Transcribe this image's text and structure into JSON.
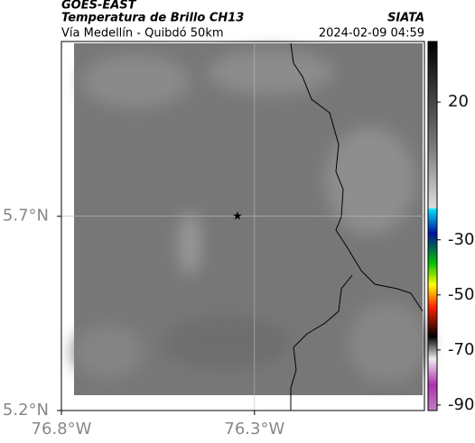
{
  "header": {
    "title": "GOES-EAST",
    "subtitle": "Temperatura de Brillo CH13",
    "region": "Vía Medellín - Quibdó 50km",
    "source": "SIATA",
    "timestamp": "2024-02-09 04:59"
  },
  "map": {
    "xlim": [
      -76.8,
      -75.86
    ],
    "ylim": [
      5.2,
      6.15
    ],
    "xticks": [
      {
        "value": -76.8,
        "label": "76.8°W"
      },
      {
        "value": -76.3,
        "label": "76.3°W"
      }
    ],
    "yticks": [
      {
        "value": 5.7,
        "label": "5.7°N"
      },
      {
        "value": 5.2,
        "label": "5.2°N"
      }
    ]
  },
  "colorbar": {
    "lim": [
      -92,
      42
    ],
    "ticks": [
      20,
      -30,
      -50,
      -70,
      -90
    ]
  }
}
